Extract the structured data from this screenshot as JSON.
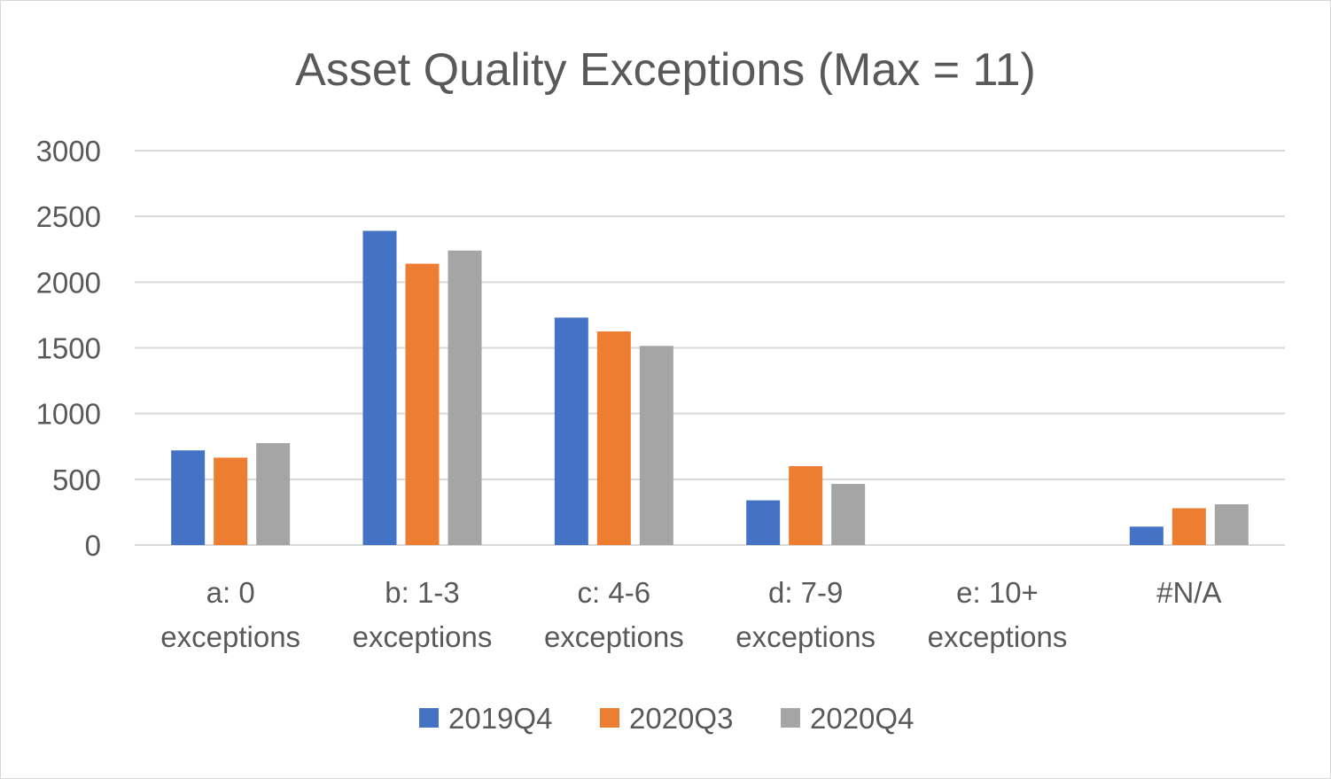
{
  "chart_data": {
    "type": "bar",
    "title": "Asset Quality Exceptions (Max = 11)",
    "xlabel": "",
    "ylabel": "",
    "ylim": [
      0,
      3000
    ],
    "yticks": [
      "0",
      "500",
      "1000",
      "1500",
      "2000",
      "2500",
      "3000"
    ],
    "ytick_values": [
      0,
      500,
      1000,
      1500,
      2000,
      2500,
      3000
    ],
    "categories": [
      [
        "a: 0",
        "exceptions"
      ],
      [
        "b: 1-3",
        "exceptions"
      ],
      [
        "c: 4-6",
        "exceptions"
      ],
      [
        "d: 7-9",
        "exceptions"
      ],
      [
        "e: 10+",
        "exceptions"
      ],
      [
        "#N/A"
      ]
    ],
    "series": [
      {
        "name": "2019Q4",
        "color": "#4472c4",
        "values": [
          720,
          2390,
          1730,
          340,
          0,
          140
        ]
      },
      {
        "name": "2020Q3",
        "color": "#ed7d31",
        "values": [
          665,
          2140,
          1625,
          600,
          0,
          280
        ]
      },
      {
        "name": "2020Q4",
        "color": "#a5a5a5",
        "values": [
          775,
          2240,
          1515,
          465,
          0,
          310
        ]
      }
    ],
    "grid": true,
    "legend_position": "bottom"
  }
}
